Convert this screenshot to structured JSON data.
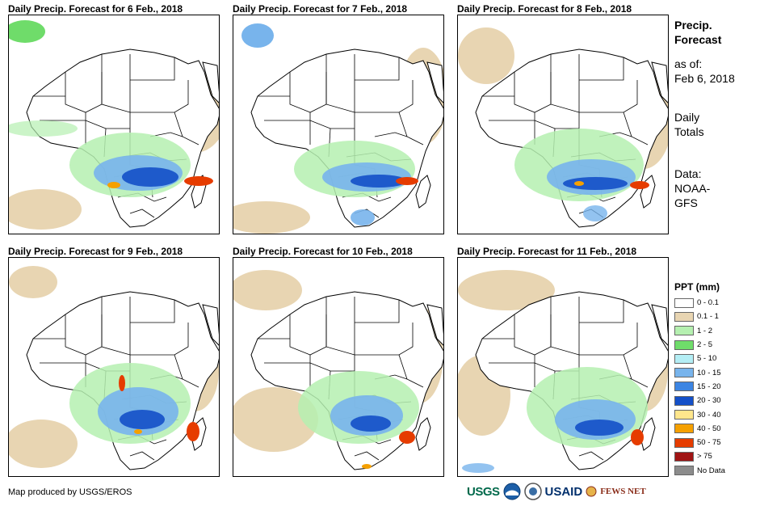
{
  "panels": [
    {
      "title": "Daily Precip. Forecast for 6 Feb., 2018"
    },
    {
      "title": "Daily Precip. Forecast for 7 Feb., 2018"
    },
    {
      "title": "Daily Precip. Forecast for 8 Feb., 2018"
    },
    {
      "title": "Daily Precip. Forecast for 9 Feb., 2018"
    },
    {
      "title": "Daily Precip. Forecast for 10 Feb., 2018"
    },
    {
      "title": "Daily Precip. Forecast for 11 Feb., 2018"
    }
  ],
  "side": {
    "title_line1": "Precip.",
    "title_line2": "Forecast",
    "asof_label": "as of:",
    "asof_date": "Feb 6, 2018",
    "totals_line1": "Daily",
    "totals_line2": "Totals",
    "data_label": "Data:",
    "data_line1": "NOAA-",
    "data_line2": "GFS"
  },
  "legend": {
    "title": "PPT (mm)",
    "items": [
      {
        "label": "0 - 0.1",
        "color": "#ffffff"
      },
      {
        "label": "0.1 - 1",
        "color": "#e8d5b2"
      },
      {
        "label": "1 - 2",
        "color": "#b5f0b0"
      },
      {
        "label": "2 - 5",
        "color": "#6fdc6a"
      },
      {
        "label": "5 - 10",
        "color": "#b4eef5"
      },
      {
        "label": "10 - 15",
        "color": "#78b4ec"
      },
      {
        "label": "15 - 20",
        "color": "#3c85e3"
      },
      {
        "label": "20 - 30",
        "color": "#1450c8"
      },
      {
        "label": "30 - 40",
        "color": "#ffe68c"
      },
      {
        "label": "40 - 50",
        "color": "#f5a000"
      },
      {
        "label": "50 - 75",
        "color": "#e63c00"
      },
      {
        "label": "> 75",
        "color": "#a01414"
      },
      {
        "label": "No Data",
        "color": "#8c8c8c"
      }
    ]
  },
  "credit": "Map produced by USGS/EROS",
  "logos": {
    "usgs": "USGS",
    "usaid": "USAID",
    "fews": "FEWS NET"
  }
}
